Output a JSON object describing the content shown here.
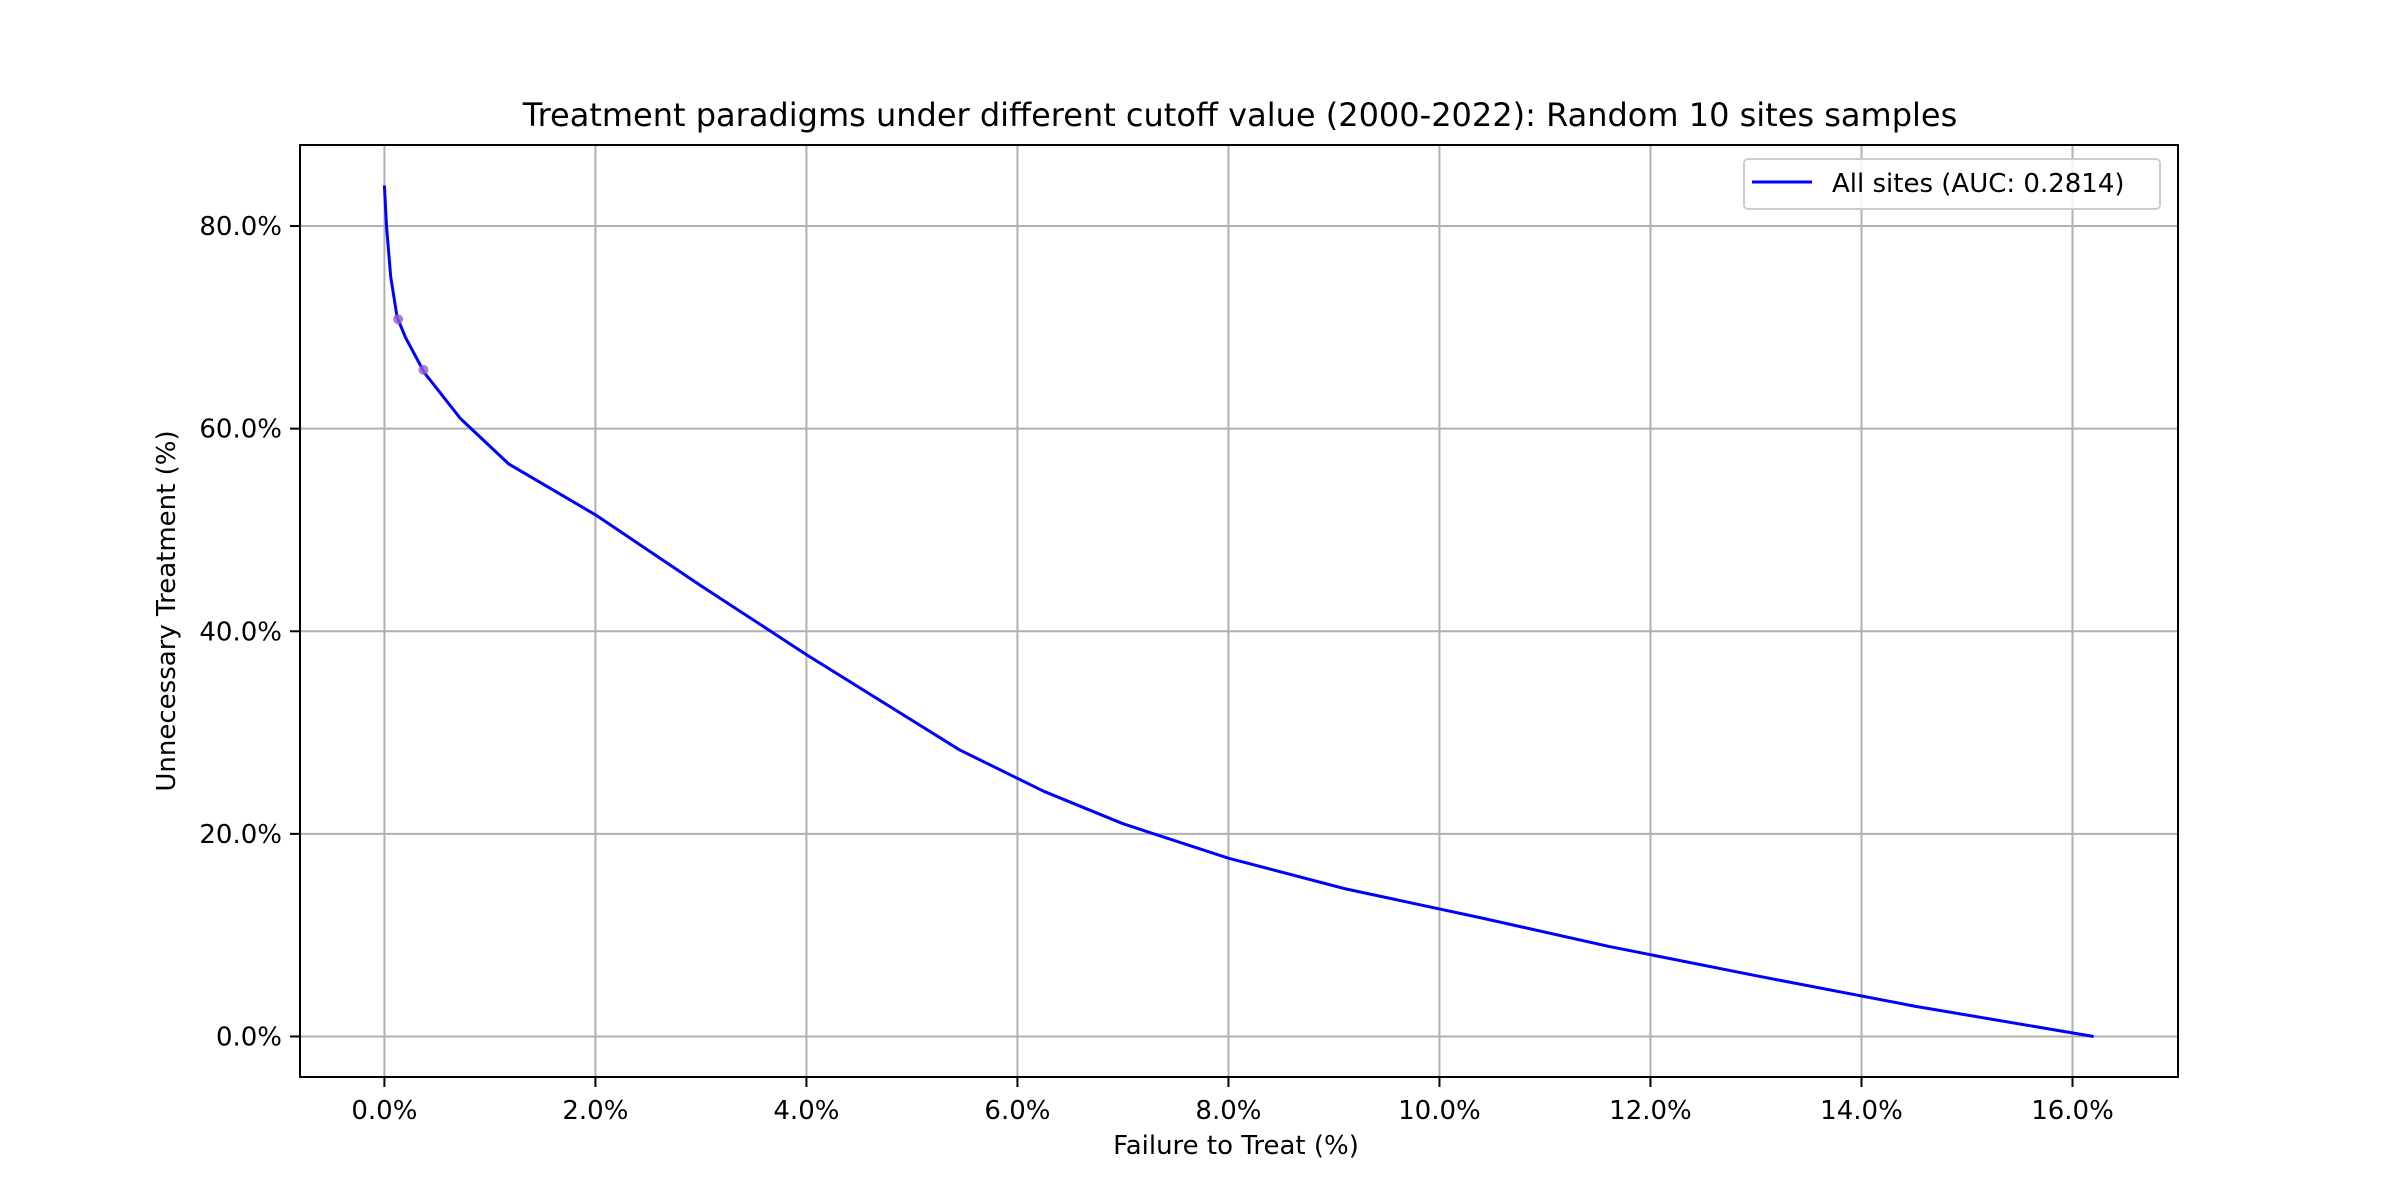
{
  "chart_data": {
    "type": "line",
    "title": "Treatment paradigms under different cutoff value (2000-2022): Random 10 sites samples",
    "xlabel": "Failure to Treat (%)",
    "ylabel": "Unnecessary Treatment (%)",
    "xlim": [
      -0.8,
      17.0
    ],
    "ylim": [
      -4.0,
      88.0
    ],
    "x_ticks": [
      0,
      2,
      4,
      6,
      8,
      10,
      12,
      14,
      16
    ],
    "y_ticks": [
      0,
      20,
      40,
      60,
      80
    ],
    "x_tick_labels": [
      "0.0%",
      "2.0%",
      "4.0%",
      "6.0%",
      "8.0%",
      "10.0%",
      "12.0%",
      "14.0%",
      "16.0%"
    ],
    "y_tick_labels": [
      "0.0%",
      "20.0%",
      "40.0%",
      "60.0%",
      "80.0%"
    ],
    "grid": true,
    "legend_position": "top-right",
    "series": [
      {
        "name": "All sites (AUC: 0.2814)",
        "color": "#0000ff",
        "x": [
          0.0,
          0.02,
          0.06,
          0.12,
          0.2,
          0.38,
          0.72,
          1.18,
          2.0,
          3.0,
          4.0,
          5.45,
          6.25,
          7.0,
          8.0,
          9.1,
          10.4,
          11.6,
          13.0,
          14.5,
          16.2
        ],
        "y": [
          84.0,
          80.0,
          75.0,
          71.0,
          69.0,
          65.5,
          61.0,
          56.5,
          51.5,
          44.5,
          37.7,
          28.3,
          24.2,
          21.0,
          17.6,
          14.6,
          11.7,
          8.9,
          6.0,
          3.0,
          0.0
        ]
      }
    ],
    "markers": [
      {
        "x": 0.13,
        "y": 70.8,
        "color": "#9a5cc9"
      },
      {
        "x": 0.37,
        "y": 65.8,
        "color": "#9a5cc9"
      }
    ]
  }
}
